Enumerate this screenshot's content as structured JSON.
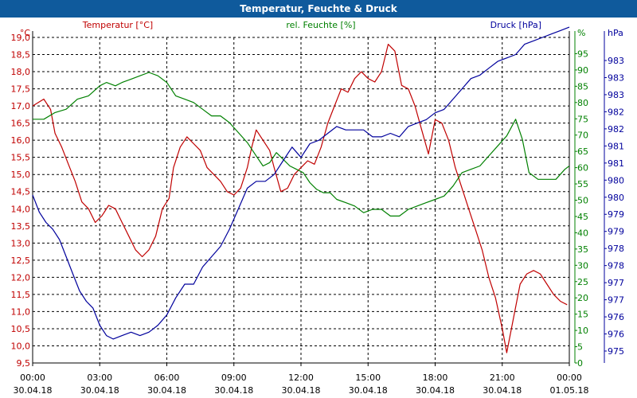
{
  "chart_data": {
    "type": "line",
    "title": "Temperatur, Feuchte & Druck",
    "colors": {
      "temperature": "#c00000",
      "humidity": "#008000",
      "pressure": "#00009c",
      "title_bg": "#0f5a9c"
    },
    "axes": {
      "temperature": {
        "label": "Temperatur [°C]",
        "unit": "°C",
        "range": [
          9.5,
          19.0
        ],
        "ticks": [
          "9,5",
          "10,0",
          "10,5",
          "11,0",
          "11,5",
          "12,0",
          "12,5",
          "13,0",
          "13,5",
          "14,0",
          "14,5",
          "15,0",
          "15,5",
          "16,0",
          "16,5",
          "17,0",
          "17,5",
          "18,0",
          "18,5",
          "19,0"
        ]
      },
      "humidity": {
        "label": "rel. Feuchte [%]",
        "unit": "%",
        "range": [
          0,
          97.5
        ],
        "ticks": [
          "0",
          "5",
          "10",
          "15",
          "20",
          "25",
          "30",
          "35",
          "40",
          "45",
          "50",
          "55",
          "60",
          "65",
          "70",
          "75",
          "80",
          "85",
          "90",
          "95"
        ]
      },
      "pressure": {
        "label": "Druck [hPa]",
        "unit": "hPa",
        "range": [
          974.5,
          984.0
        ],
        "ticks": [
          "975",
          "976",
          "976",
          "977",
          "977",
          "978",
          "978",
          "979",
          "979",
          "980",
          "980",
          "981",
          "981",
          "982",
          "982",
          "983",
          "983",
          "983"
        ]
      }
    },
    "x_labels": [
      {
        "time": "00:00",
        "date": "30.04.18"
      },
      {
        "time": "03:00",
        "date": "30.04.18"
      },
      {
        "time": "06:00",
        "date": "30.04.18"
      },
      {
        "time": "09:00",
        "date": "30.04.18"
      },
      {
        "time": "12:00",
        "date": "30.04.18"
      },
      {
        "time": "15:00",
        "date": "30.04.18"
      },
      {
        "time": "18:00",
        "date": "30.04.18"
      },
      {
        "time": "21:00",
        "date": "30.04.18"
      },
      {
        "time": "00:00",
        "date": "01.05.18"
      }
    ],
    "x_range_hours": [
      0,
      24
    ],
    "series": [
      {
        "name": "Temperatur",
        "axis": "temperature",
        "points": [
          [
            0,
            17.0
          ],
          [
            0.5,
            17.2
          ],
          [
            0.8,
            16.9
          ],
          [
            1.0,
            16.2
          ],
          [
            1.3,
            15.8
          ],
          [
            1.6,
            15.3
          ],
          [
            1.9,
            14.8
          ],
          [
            2.2,
            14.2
          ],
          [
            2.5,
            14.0
          ],
          [
            2.8,
            13.6
          ],
          [
            3.1,
            13.8
          ],
          [
            3.4,
            14.1
          ],
          [
            3.7,
            14.0
          ],
          [
            4.0,
            13.6
          ],
          [
            4.3,
            13.2
          ],
          [
            4.6,
            12.8
          ],
          [
            4.9,
            12.6
          ],
          [
            5.2,
            12.8
          ],
          [
            5.5,
            13.2
          ],
          [
            5.8,
            14.0
          ],
          [
            6.1,
            14.3
          ],
          [
            6.3,
            15.2
          ],
          [
            6.6,
            15.8
          ],
          [
            6.9,
            16.1
          ],
          [
            7.2,
            15.9
          ],
          [
            7.5,
            15.7
          ],
          [
            7.8,
            15.2
          ],
          [
            8.1,
            15.0
          ],
          [
            8.4,
            14.8
          ],
          [
            8.7,
            14.5
          ],
          [
            9.0,
            14.4
          ],
          [
            9.3,
            14.6
          ],
          [
            9.6,
            15.2
          ],
          [
            9.8,
            15.8
          ],
          [
            10.0,
            16.3
          ],
          [
            10.3,
            16.0
          ],
          [
            10.6,
            15.7
          ],
          [
            10.8,
            15.2
          ],
          [
            11.1,
            14.5
          ],
          [
            11.4,
            14.6
          ],
          [
            11.7,
            15.0
          ],
          [
            12.0,
            15.2
          ],
          [
            12.3,
            15.4
          ],
          [
            12.6,
            15.3
          ],
          [
            12.9,
            15.8
          ],
          [
            13.2,
            16.5
          ],
          [
            13.5,
            17.0
          ],
          [
            13.8,
            17.5
          ],
          [
            14.1,
            17.4
          ],
          [
            14.4,
            17.8
          ],
          [
            14.7,
            18.0
          ],
          [
            15.0,
            17.8
          ],
          [
            15.3,
            17.7
          ],
          [
            15.6,
            18.0
          ],
          [
            15.9,
            18.8
          ],
          [
            16.2,
            18.6
          ],
          [
            16.5,
            17.6
          ],
          [
            16.8,
            17.5
          ],
          [
            17.1,
            17.0
          ],
          [
            17.4,
            16.3
          ],
          [
            17.7,
            15.6
          ],
          [
            18.0,
            16.6
          ],
          [
            18.3,
            16.5
          ],
          [
            18.6,
            16.0
          ],
          [
            18.9,
            15.2
          ],
          [
            19.2,
            14.6
          ],
          [
            19.5,
            14.0
          ],
          [
            19.8,
            13.4
          ],
          [
            20.1,
            12.8
          ],
          [
            20.4,
            12.0
          ],
          [
            20.7,
            11.4
          ],
          [
            21.0,
            10.5
          ],
          [
            21.2,
            9.8
          ],
          [
            21.5,
            10.8
          ],
          [
            21.8,
            11.8
          ],
          [
            22.1,
            12.1
          ],
          [
            22.4,
            12.2
          ],
          [
            22.7,
            12.1
          ],
          [
            23.0,
            11.8
          ],
          [
            23.3,
            11.5
          ],
          [
            23.6,
            11.3
          ],
          [
            23.9,
            11.2
          ]
        ]
      },
      {
        "name": "rel. Feuchte",
        "axis": "humidity",
        "points": [
          [
            0,
            73
          ],
          [
            0.5,
            73
          ],
          [
            1.0,
            75
          ],
          [
            1.5,
            76
          ],
          [
            2.0,
            79
          ],
          [
            2.5,
            80
          ],
          [
            3.0,
            83
          ],
          [
            3.3,
            84
          ],
          [
            3.7,
            83
          ],
          [
            4.0,
            84
          ],
          [
            4.4,
            85
          ],
          [
            4.8,
            86
          ],
          [
            5.2,
            87
          ],
          [
            5.6,
            86
          ],
          [
            6.0,
            84
          ],
          [
            6.4,
            80
          ],
          [
            6.8,
            79
          ],
          [
            7.2,
            78
          ],
          [
            7.6,
            76
          ],
          [
            8.0,
            74
          ],
          [
            8.4,
            74
          ],
          [
            8.8,
            72
          ],
          [
            9.2,
            69
          ],
          [
            9.6,
            66
          ],
          [
            10.0,
            62
          ],
          [
            10.3,
            59
          ],
          [
            10.6,
            60
          ],
          [
            10.9,
            63
          ],
          [
            11.2,
            61
          ],
          [
            11.5,
            59
          ],
          [
            11.8,
            58
          ],
          [
            12.1,
            57
          ],
          [
            12.4,
            54
          ],
          [
            12.7,
            52
          ],
          [
            13.0,
            51
          ],
          [
            13.3,
            51
          ],
          [
            13.6,
            49
          ],
          [
            14.0,
            48
          ],
          [
            14.4,
            47
          ],
          [
            14.8,
            45
          ],
          [
            15.2,
            46
          ],
          [
            15.6,
            46
          ],
          [
            16.0,
            44
          ],
          [
            16.4,
            44
          ],
          [
            16.8,
            46
          ],
          [
            17.2,
            47
          ],
          [
            17.6,
            48
          ],
          [
            18.0,
            49
          ],
          [
            18.4,
            50
          ],
          [
            18.8,
            53
          ],
          [
            19.2,
            57
          ],
          [
            19.6,
            58
          ],
          [
            20.0,
            59
          ],
          [
            20.4,
            62
          ],
          [
            20.8,
            65
          ],
          [
            21.2,
            68
          ],
          [
            21.6,
            73
          ],
          [
            21.9,
            67
          ],
          [
            22.2,
            57
          ],
          [
            22.6,
            55
          ],
          [
            23.0,
            55
          ],
          [
            23.4,
            55
          ],
          [
            23.8,
            58
          ],
          [
            24.0,
            59
          ]
        ]
      },
      {
        "name": "Druck",
        "axis": "pressure",
        "points": [
          [
            0,
            979.4
          ],
          [
            0.3,
            978.9
          ],
          [
            0.6,
            978.6
          ],
          [
            0.9,
            978.4
          ],
          [
            1.2,
            978.1
          ],
          [
            1.5,
            977.6
          ],
          [
            1.8,
            977.1
          ],
          [
            2.1,
            976.6
          ],
          [
            2.4,
            976.3
          ],
          [
            2.7,
            976.1
          ],
          [
            3.0,
            975.6
          ],
          [
            3.3,
            975.3
          ],
          [
            3.6,
            975.2
          ],
          [
            4.0,
            975.3
          ],
          [
            4.4,
            975.4
          ],
          [
            4.8,
            975.3
          ],
          [
            5.2,
            975.4
          ],
          [
            5.6,
            975.6
          ],
          [
            6.0,
            975.9
          ],
          [
            6.4,
            976.4
          ],
          [
            6.8,
            976.8
          ],
          [
            7.2,
            976.8
          ],
          [
            7.6,
            977.3
          ],
          [
            8.0,
            977.6
          ],
          [
            8.4,
            977.9
          ],
          [
            8.8,
            978.4
          ],
          [
            9.2,
            979.0
          ],
          [
            9.6,
            979.6
          ],
          [
            10.0,
            979.8
          ],
          [
            10.4,
            979.8
          ],
          [
            10.8,
            980.0
          ],
          [
            11.2,
            980.4
          ],
          [
            11.6,
            980.8
          ],
          [
            12.0,
            980.5
          ],
          [
            12.4,
            980.9
          ],
          [
            12.8,
            981.0
          ],
          [
            13.2,
            981.2
          ],
          [
            13.6,
            981.4
          ],
          [
            14.0,
            981.3
          ],
          [
            14.4,
            981.3
          ],
          [
            14.8,
            981.3
          ],
          [
            15.2,
            981.1
          ],
          [
            15.6,
            981.1
          ],
          [
            16.0,
            981.2
          ],
          [
            16.4,
            981.1
          ],
          [
            16.8,
            981.4
          ],
          [
            17.2,
            981.5
          ],
          [
            17.6,
            981.6
          ],
          [
            18.0,
            981.8
          ],
          [
            18.4,
            981.9
          ],
          [
            18.8,
            982.2
          ],
          [
            19.2,
            982.5
          ],
          [
            19.6,
            982.8
          ],
          [
            20.0,
            982.9
          ],
          [
            20.4,
            983.1
          ],
          [
            20.8,
            983.3
          ],
          [
            21.2,
            983.4
          ],
          [
            21.6,
            983.5
          ],
          [
            22.0,
            983.8
          ],
          [
            22.4,
            983.9
          ],
          [
            22.8,
            984.0
          ],
          [
            23.2,
            984.1
          ],
          [
            23.6,
            984.2
          ],
          [
            24.0,
            984.3
          ]
        ]
      }
    ]
  }
}
